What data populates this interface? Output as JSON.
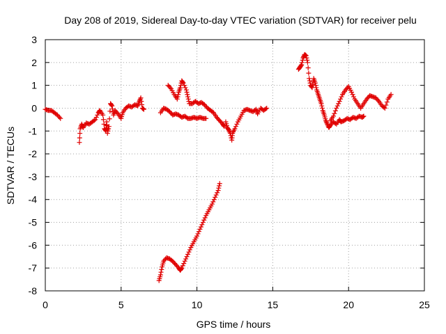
{
  "chart_data": {
    "type": "scatter",
    "title": "Day 208 of 2019, Sidereal Day-to-day VTEC variation (SDTVAR) for receiver pelu",
    "xlabel": "GPS time / hours",
    "ylabel": "SDTVAR / TECUs",
    "xlim": [
      0,
      25
    ],
    "ylim": [
      -8,
      3
    ],
    "xticks": [
      "0",
      "5",
      "10",
      "15",
      "20",
      "25"
    ],
    "yticks": [
      "3",
      "2",
      "1",
      "0",
      "-1",
      "-2",
      "-3",
      "-4",
      "-5",
      "-6",
      "-7",
      "-8"
    ],
    "grid": true,
    "marker": "plus",
    "color": "#e00000",
    "series": [
      {
        "name": "seg1",
        "points": [
          [
            0.0,
            -0.05
          ],
          [
            0.2,
            -0.1
          ],
          [
            0.4,
            -0.1
          ],
          [
            0.6,
            -0.2
          ],
          [
            0.8,
            -0.3
          ],
          [
            1.0,
            -0.45
          ]
        ]
      },
      {
        "name": "seg2",
        "points": [
          [
            2.25,
            -1.5
          ],
          [
            2.3,
            -0.9
          ],
          [
            2.4,
            -0.7
          ],
          [
            2.5,
            -0.85
          ],
          [
            2.7,
            -0.65
          ],
          [
            2.9,
            -0.7
          ],
          [
            3.1,
            -0.6
          ],
          [
            3.3,
            -0.5
          ],
          [
            3.5,
            -0.2
          ],
          [
            3.6,
            -0.1
          ],
          [
            3.8,
            -0.3
          ],
          [
            3.9,
            -0.9
          ],
          [
            4.0,
            -1.0
          ],
          [
            4.05,
            -0.6
          ],
          [
            4.1,
            -1.1
          ],
          [
            4.2,
            -0.8
          ],
          [
            4.3,
            0.2
          ],
          [
            4.4,
            0.1
          ],
          [
            4.5,
            -0.3
          ],
          [
            4.6,
            -0.1
          ],
          [
            4.8,
            -0.25
          ],
          [
            5.0,
            -0.45
          ],
          [
            5.1,
            -0.2
          ],
          [
            5.3,
            0.0
          ],
          [
            5.5,
            0.1
          ],
          [
            5.7,
            0.05
          ],
          [
            5.9,
            0.15
          ],
          [
            6.1,
            0.1
          ],
          [
            6.2,
            0.3
          ],
          [
            6.3,
            0.45
          ],
          [
            6.4,
            0.0
          ],
          [
            6.5,
            -0.05
          ]
        ]
      },
      {
        "name": "seg3",
        "points": [
          [
            7.6,
            -0.2
          ],
          [
            7.8,
            0.0
          ],
          [
            8.0,
            -0.05
          ],
          [
            8.2,
            -0.15
          ],
          [
            8.4,
            -0.3
          ],
          [
            8.6,
            -0.25
          ],
          [
            8.8,
            -0.3
          ],
          [
            9.0,
            -0.4
          ],
          [
            9.2,
            -0.35
          ],
          [
            9.4,
            -0.45
          ],
          [
            9.6,
            -0.45
          ],
          [
            9.8,
            -0.4
          ],
          [
            10.0,
            -0.45
          ],
          [
            10.2,
            -0.4
          ],
          [
            10.4,
            -0.45
          ],
          [
            10.6,
            -0.45
          ]
        ]
      },
      {
        "name": "seg4",
        "points": [
          [
            8.1,
            1.0
          ],
          [
            8.3,
            0.85
          ],
          [
            8.5,
            0.6
          ],
          [
            8.7,
            0.4
          ],
          [
            8.8,
            0.7
          ],
          [
            8.9,
            0.9
          ],
          [
            9.0,
            1.2
          ],
          [
            9.1,
            1.1
          ],
          [
            9.3,
            0.8
          ],
          [
            9.4,
            0.5
          ],
          [
            9.5,
            0.2
          ],
          [
            9.7,
            0.2
          ],
          [
            9.9,
            0.3
          ],
          [
            10.1,
            0.2
          ],
          [
            10.3,
            0.25
          ],
          [
            10.5,
            0.15
          ],
          [
            10.7,
            0.0
          ],
          [
            10.9,
            -0.1
          ],
          [
            11.1,
            -0.2
          ],
          [
            11.3,
            -0.4
          ],
          [
            11.5,
            -0.55
          ],
          [
            11.7,
            -0.7
          ],
          [
            11.8,
            -0.8
          ]
        ]
      },
      {
        "name": "seg5",
        "points": [
          [
            11.9,
            -0.6
          ],
          [
            12.0,
            -0.85
          ],
          [
            12.1,
            -0.95
          ],
          [
            12.2,
            -1.1
          ],
          [
            12.3,
            -1.4
          ],
          [
            12.35,
            -1.1
          ],
          [
            12.5,
            -0.9
          ],
          [
            12.7,
            -0.6
          ],
          [
            12.9,
            -0.35
          ],
          [
            13.1,
            -0.1
          ],
          [
            13.3,
            -0.05
          ],
          [
            13.5,
            -0.1
          ],
          [
            13.7,
            -0.15
          ],
          [
            13.9,
            -0.05
          ],
          [
            14.0,
            -0.25
          ],
          [
            14.2,
            0.0
          ],
          [
            14.4,
            -0.1
          ],
          [
            14.6,
            0.0
          ]
        ]
      },
      {
        "name": "seg6",
        "points": [
          [
            7.5,
            -7.55
          ],
          [
            7.6,
            -7.3
          ],
          [
            7.7,
            -6.95
          ],
          [
            7.8,
            -6.7
          ],
          [
            8.0,
            -6.55
          ],
          [
            8.2,
            -6.6
          ],
          [
            8.4,
            -6.7
          ],
          [
            8.6,
            -6.85
          ],
          [
            8.8,
            -7.0
          ],
          [
            8.9,
            -7.1
          ],
          [
            9.0,
            -7.0
          ],
          [
            9.2,
            -6.7
          ],
          [
            9.4,
            -6.4
          ],
          [
            9.6,
            -6.1
          ],
          [
            9.8,
            -5.85
          ],
          [
            10.0,
            -5.6
          ],
          [
            10.2,
            -5.3
          ],
          [
            10.4,
            -5.0
          ],
          [
            10.6,
            -4.7
          ],
          [
            10.8,
            -4.45
          ],
          [
            11.0,
            -4.2
          ],
          [
            11.2,
            -3.9
          ],
          [
            11.4,
            -3.6
          ],
          [
            11.5,
            -3.3
          ]
        ]
      },
      {
        "name": "seg7",
        "points": [
          [
            16.7,
            1.7
          ],
          [
            16.8,
            1.8
          ],
          [
            16.9,
            1.9
          ],
          [
            17.0,
            2.2
          ],
          [
            17.1,
            2.35
          ],
          [
            17.2,
            2.3
          ],
          [
            17.3,
            2.0
          ],
          [
            17.4,
            1.3
          ],
          [
            17.5,
            1.0
          ],
          [
            17.6,
            0.9
          ],
          [
            17.7,
            1.3
          ],
          [
            17.8,
            1.1
          ],
          [
            17.9,
            0.8
          ],
          [
            18.0,
            0.6
          ],
          [
            18.1,
            0.4
          ],
          [
            18.2,
            0.2
          ],
          [
            18.3,
            -0.1
          ],
          [
            18.4,
            -0.3
          ],
          [
            18.5,
            -0.55
          ],
          [
            18.6,
            -0.7
          ],
          [
            18.7,
            -0.85
          ],
          [
            18.8,
            -0.75
          ],
          [
            19.0,
            -0.6
          ],
          [
            19.2,
            -0.7
          ],
          [
            19.4,
            -0.5
          ],
          [
            19.5,
            -0.6
          ],
          [
            19.7,
            -0.55
          ],
          [
            19.9,
            -0.45
          ],
          [
            20.1,
            -0.5
          ],
          [
            20.3,
            -0.4
          ],
          [
            20.5,
            -0.45
          ],
          [
            20.7,
            -0.35
          ],
          [
            20.9,
            -0.4
          ],
          [
            21.0,
            -0.35
          ]
        ]
      },
      {
        "name": "seg8",
        "points": [
          [
            18.8,
            -0.55
          ],
          [
            19.0,
            -0.35
          ],
          [
            19.2,
            0.0
          ],
          [
            19.4,
            0.3
          ],
          [
            19.6,
            0.6
          ],
          [
            19.8,
            0.8
          ],
          [
            20.0,
            0.95
          ],
          [
            20.2,
            0.7
          ],
          [
            20.4,
            0.4
          ],
          [
            20.6,
            0.2
          ],
          [
            20.8,
            0.0
          ],
          [
            21.0,
            0.2
          ],
          [
            21.2,
            0.4
          ],
          [
            21.4,
            0.55
          ],
          [
            21.6,
            0.5
          ],
          [
            21.8,
            0.45
          ],
          [
            22.0,
            0.3
          ],
          [
            22.2,
            0.1
          ],
          [
            22.4,
            0.0
          ],
          [
            22.6,
            0.4
          ],
          [
            22.8,
            0.6
          ]
        ]
      }
    ]
  }
}
